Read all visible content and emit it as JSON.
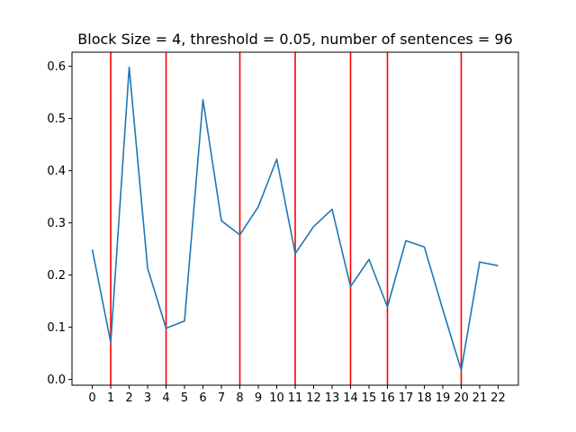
{
  "chart_data": {
    "type": "line",
    "title": "Block Size = 4, threshold = 0.05, number of sentences = 96",
    "xlabel": "",
    "ylabel": "",
    "x": [
      0,
      1,
      2,
      3,
      4,
      5,
      6,
      7,
      8,
      9,
      10,
      11,
      12,
      13,
      14,
      15,
      16,
      17,
      18,
      19,
      20,
      21,
      22
    ],
    "series": [
      {
        "values": [
          0.249,
          0.071,
          0.598,
          0.213,
          0.098,
          0.112,
          0.536,
          0.304,
          0.277,
          0.331,
          0.422,
          0.241,
          0.293,
          0.326,
          0.178,
          0.23,
          0.139,
          0.266,
          0.254,
          0.134,
          0.018,
          0.225,
          0.218
        ],
        "color": "#1f77b4"
      }
    ],
    "vlines": [
      1,
      4,
      8,
      11,
      14,
      16,
      20
    ],
    "vline_color": "#ff0000",
    "xticks": [
      "0",
      "1",
      "2",
      "3",
      "4",
      "5",
      "6",
      "7",
      "8",
      "9",
      "10",
      "11",
      "12",
      "13",
      "14",
      "15",
      "16",
      "17",
      "18",
      "19",
      "20",
      "21",
      "22"
    ],
    "yticks": [
      "0.0",
      "0.1",
      "0.2",
      "0.3",
      "0.4",
      "0.5",
      "0.6"
    ],
    "ytick_values": [
      0.0,
      0.1,
      0.2,
      0.3,
      0.4,
      0.5,
      0.6
    ],
    "xlim": [
      -1.1,
      23.1
    ],
    "ylim": [
      -0.011,
      0.627
    ],
    "grid": false,
    "legend": "none"
  }
}
